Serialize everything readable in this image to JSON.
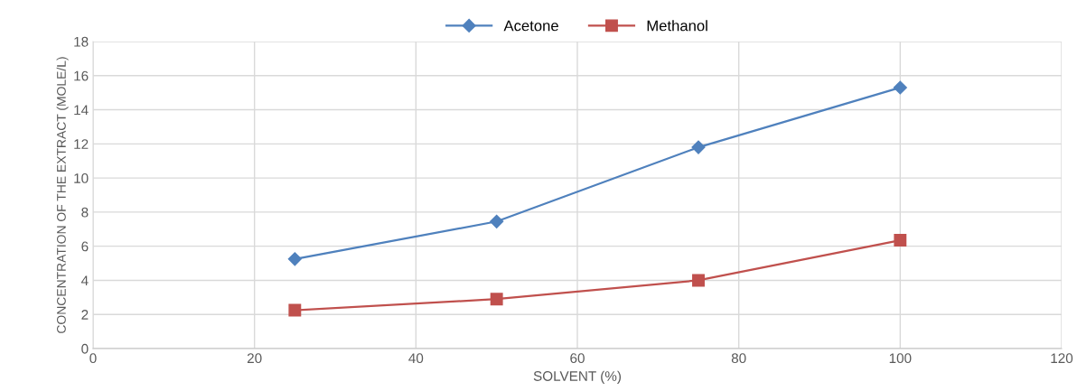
{
  "chart_data": {
    "type": "line",
    "xlabel": "SOLVENT (%)",
    "ylabel": "CONCENTRATION OF THE EXTRACT (MOLE/L)",
    "x": [
      25,
      50,
      75,
      100
    ],
    "series": [
      {
        "name": "Acetone",
        "color": "#4f81bd",
        "marker": "diamond",
        "values": [
          5.25,
          7.45,
          11.8,
          15.3
        ]
      },
      {
        "name": "Methanol",
        "color": "#c0504d",
        "marker": "square",
        "values": [
          2.25,
          2.9,
          4.0,
          6.35
        ]
      }
    ],
    "xlim": [
      0,
      120
    ],
    "xticks": [
      0,
      20,
      40,
      60,
      80,
      100,
      120
    ],
    "ylim": [
      0,
      18
    ],
    "yticks": [
      0,
      2,
      4,
      6,
      8,
      10,
      12,
      14,
      16,
      18
    ],
    "grid": true,
    "legend": "top",
    "line_style": "solid"
  }
}
